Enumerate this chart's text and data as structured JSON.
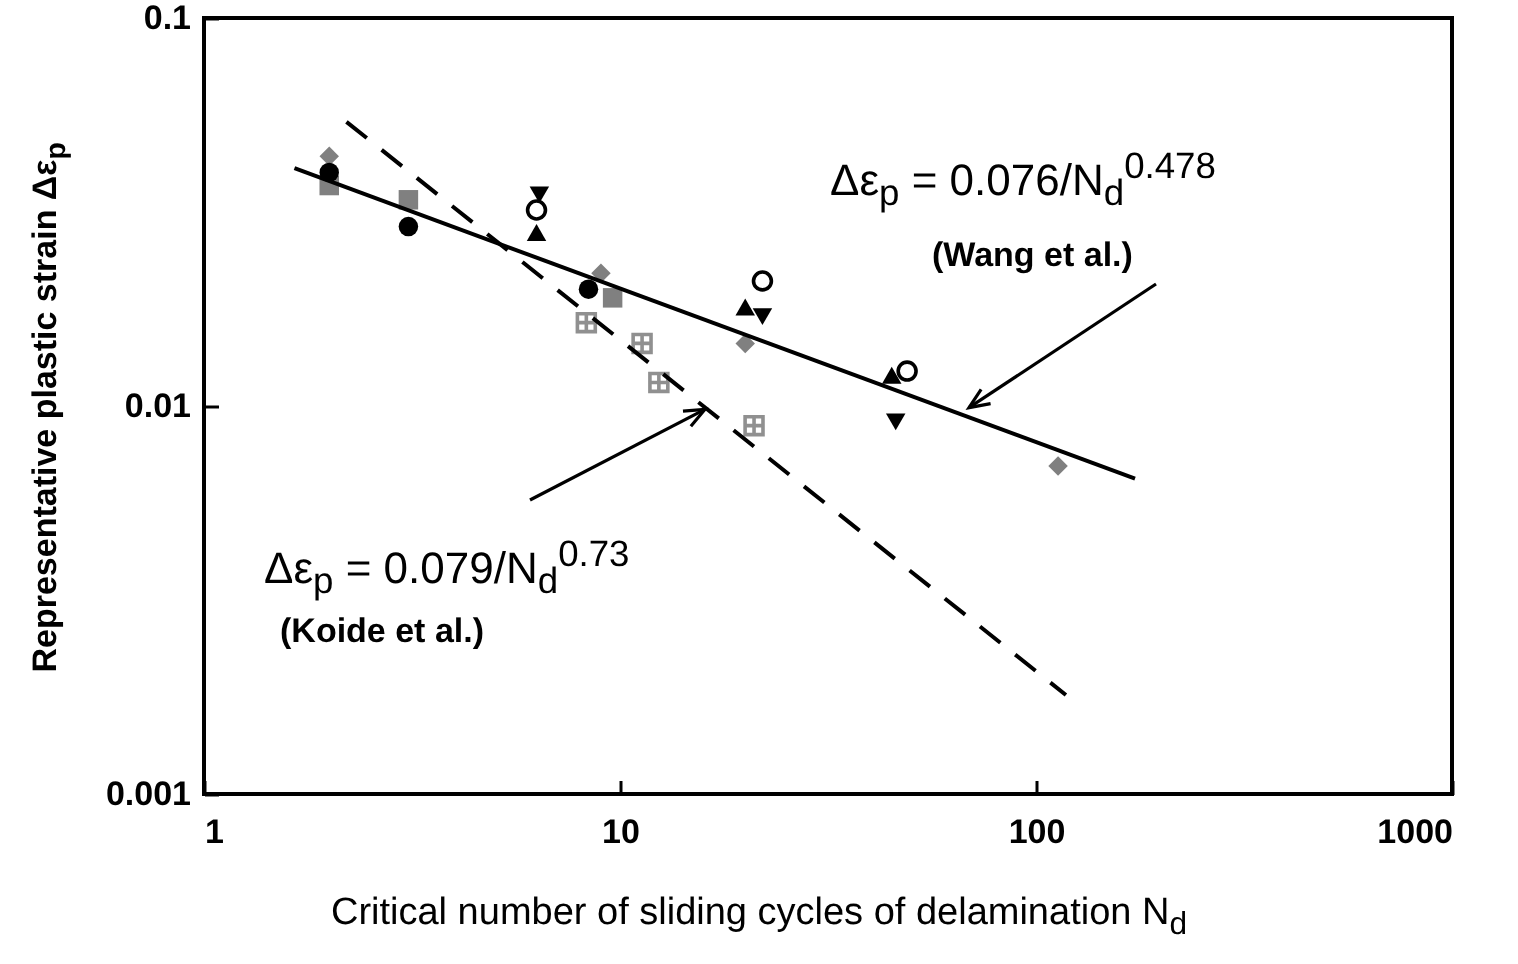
{
  "chart_data": {
    "type": "scatter",
    "xlabel": "Critical number of sliding cycles of delamination N$_{d}$",
    "ylabel": "Representative plastic strain Δε$_{p}$",
    "annotations": [
      "Δε$_{p}$ = 0.076/N$_{d}$$^{0.478}$",
      {
        "text": "(Wang et al.)",
        "x": 69,
        "y": 0.0099
      },
      {
        "text": "Δε$_{p}$ = 0.079/N$_{d}$$^{0.73}$",
        "x": 16,
        "y": 0.0098
      },
      "(Koide et al.)"
    ],
    "log": "xy",
    "grid": false,
    "xlim": [
      1,
      1000
    ],
    "ylim": [
      0.001,
      0.1
    ],
    "xticks": [
      1,
      10,
      100,
      1000
    ],
    "yticks": [
      0.001,
      0.01,
      0.1
    ],
    "series": [
      {
        "marker": "diamond",
        "color": "#808080",
        "x": [
          2.0,
          9.0,
          20,
          113
        ],
        "values": [
          0.044,
          0.022,
          0.0145,
          0.007
        ]
      },
      {
        "marker": "square",
        "color": "#808080",
        "x": [
          2.0,
          3.1,
          9.6
        ],
        "values": [
          0.037,
          0.034,
          0.019
        ]
      },
      {
        "marker": "circle",
        "color": "#000000",
        "x": [
          2.0,
          3.1,
          8.4
        ],
        "values": [
          0.04,
          0.029,
          0.02
        ]
      },
      {
        "marker": "circle-open",
        "color": "#000000",
        "x": [
          6.3,
          22,
          49
        ],
        "values": [
          0.032,
          0.021,
          0.0123
        ]
      },
      {
        "marker": "triangle",
        "color": "#000000",
        "x": [
          6.3,
          20,
          45
        ],
        "values": [
          0.028,
          0.018,
          0.012
        ]
      },
      {
        "marker": "triangle-down",
        "color": "#000000",
        "x": [
          6.4,
          22,
          46
        ],
        "values": [
          0.035,
          0.017,
          0.0091
        ]
      },
      {
        "marker": "cross",
        "color": "#909090",
        "x": [
          8.3,
          11.3,
          12.4,
          21
        ],
        "values": [
          0.0164,
          0.0145,
          0.0115,
          0.0089
        ]
      },
      {
        "type": "line",
        "marker": "none",
        "line_style": "solid",
        "color": "#000000",
        "x": [
          1.65,
          173
        ],
        "values": [
          0.041,
          0.0065
        ]
      },
      {
        "type": "line",
        "marker": "none",
        "line_style": "dashed",
        "color": "#000000",
        "x": [
          2.2,
          118
        ],
        "values": [
          0.054,
          0.0018
        ]
      }
    ]
  }
}
